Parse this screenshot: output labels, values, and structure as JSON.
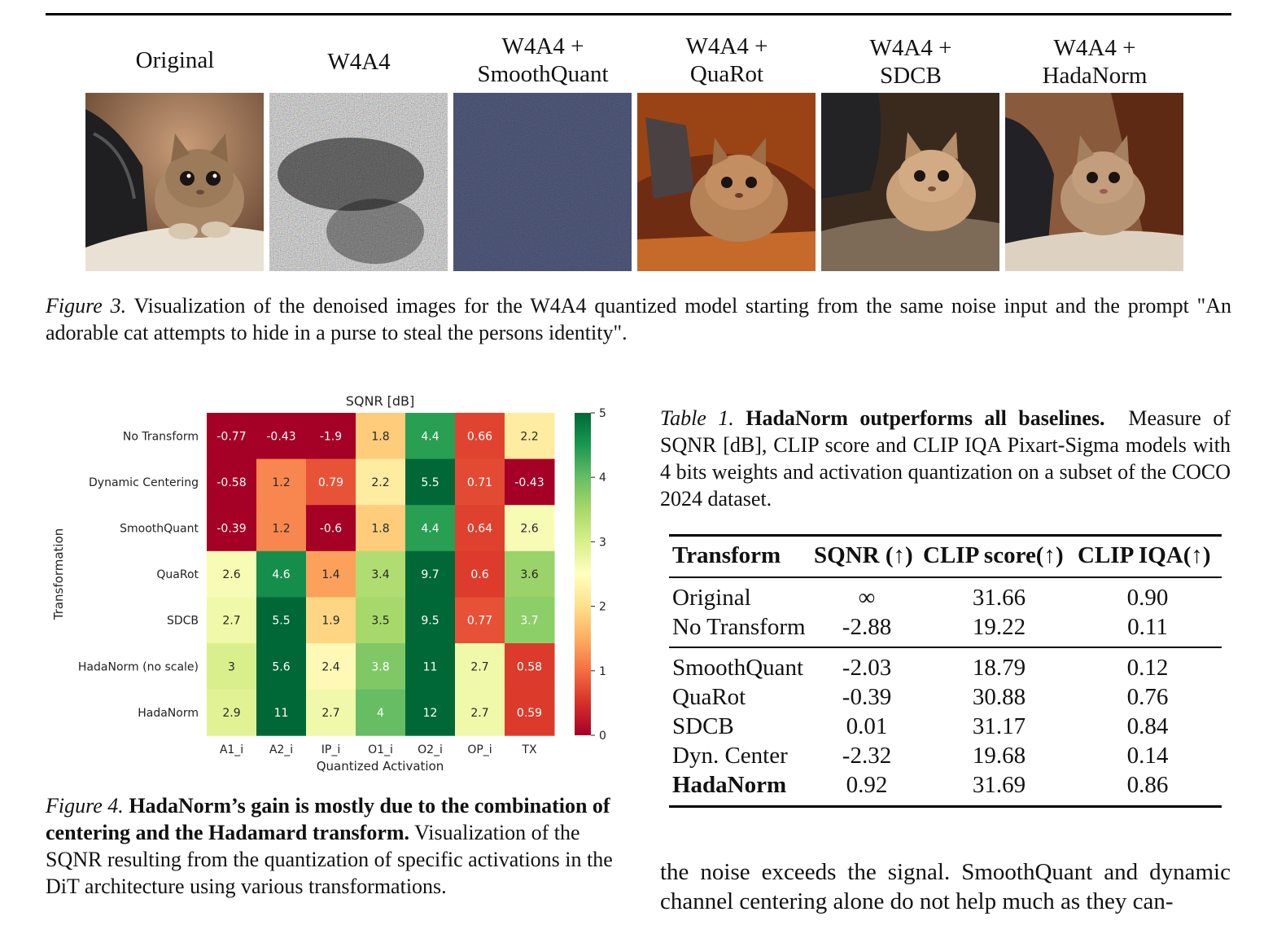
{
  "figure3": {
    "columns": [
      {
        "line1": "Original",
        "line2": ""
      },
      {
        "line1": "W4A4",
        "line2": ""
      },
      {
        "line1": "W4A4 +",
        "line2": "SmoothQuant"
      },
      {
        "line1": "W4A4 +",
        "line2": "QuaRot"
      },
      {
        "line1": "W4A4 +",
        "line2": "SDCB"
      },
      {
        "line1": "W4A4 +",
        "line2": "HadaNorm"
      }
    ],
    "caption_label": "Figure 3.",
    "caption_text": "Visualization of the denoised images for the W4A4 quantized model starting from the same noise input and the prompt \"An adorable cat attempts to hide in a purse to steal the persons identity\"."
  },
  "figure4": {
    "caption_label": "Figure 4.",
    "caption_bold": "HadaNorm’s gain is mostly due to the combination of centering and the Hadamard transform.",
    "caption_text": "Visualization of the SQNR resulting from the quantization of specific activations in the DiT architecture using various transformations."
  },
  "chart_data": {
    "type": "heatmap",
    "title": "SQNR [dB]",
    "xlabel": "Quantized Activation",
    "ylabel": "Transformation",
    "x": [
      "A1_i",
      "A2_i",
      "IP_i",
      "O1_i",
      "O2_i",
      "OP_i",
      "TX"
    ],
    "y": [
      "No Transform",
      "Dynamic Centering",
      "SmoothQuant",
      "QuaRot",
      "SDCB",
      "HadaNorm (no scale)",
      "HadaNorm"
    ],
    "values": [
      [
        -0.77,
        -0.43,
        -1.9,
        1.8,
        4.4,
        0.66,
        2.2
      ],
      [
        -0.58,
        1.2,
        0.79,
        2.2,
        5.5,
        0.71,
        -0.43
      ],
      [
        -0.39,
        1.2,
        -0.6,
        1.8,
        4.4,
        0.64,
        2.6
      ],
      [
        2.6,
        4.6,
        1.4,
        3.4,
        9.7,
        0.6,
        3.6
      ],
      [
        2.7,
        5.5,
        1.9,
        3.5,
        9.5,
        0.77,
        3.7
      ],
      [
        3,
        5.6,
        2.4,
        3.8,
        11,
        2.7,
        0.58
      ],
      [
        2.9,
        11,
        2.7,
        4,
        12,
        2.7,
        0.59
      ]
    ],
    "colorbar": {
      "range": [
        0,
        5
      ],
      "ticks": [
        "0",
        "1",
        "2",
        "3",
        "4",
        "5"
      ],
      "colormap": "RdYlGn"
    }
  },
  "table1": {
    "caption_label": "Table 1.",
    "caption_bold": "HadaNorm outperforms all baselines.",
    "caption_text": "Measure of SQNR [dB], CLIP score and CLIP IQA Pixart-Sigma models with 4 bits weights and activation quantization on a subset of the COCO 2024 dataset.",
    "headers": [
      "Transform",
      "SQNR (↑)",
      "CLIP score(↑)",
      "CLIP IQA(↑)"
    ],
    "group1": [
      [
        "Original",
        "∞",
        "31.66",
        "0.90"
      ],
      [
        "No Transform",
        "-2.88",
        "19.22",
        "0.11"
      ]
    ],
    "group2": [
      [
        "SmoothQuant",
        "-2.03",
        "18.79",
        "0.12"
      ],
      [
        "QuaRot",
        "-0.39",
        "30.88",
        "0.76"
      ],
      [
        "SDCB",
        "0.01",
        "31.17",
        "0.84"
      ],
      [
        "Dyn. Center",
        "-2.32",
        "19.68",
        "0.14"
      ],
      [
        "HadaNorm",
        "0.92",
        "31.69",
        "0.86"
      ]
    ],
    "bold_row": "HadaNorm"
  },
  "body_text": "the noise exceeds the signal. SmoothQuant and dynamic channel centering alone do not help much as they can-"
}
